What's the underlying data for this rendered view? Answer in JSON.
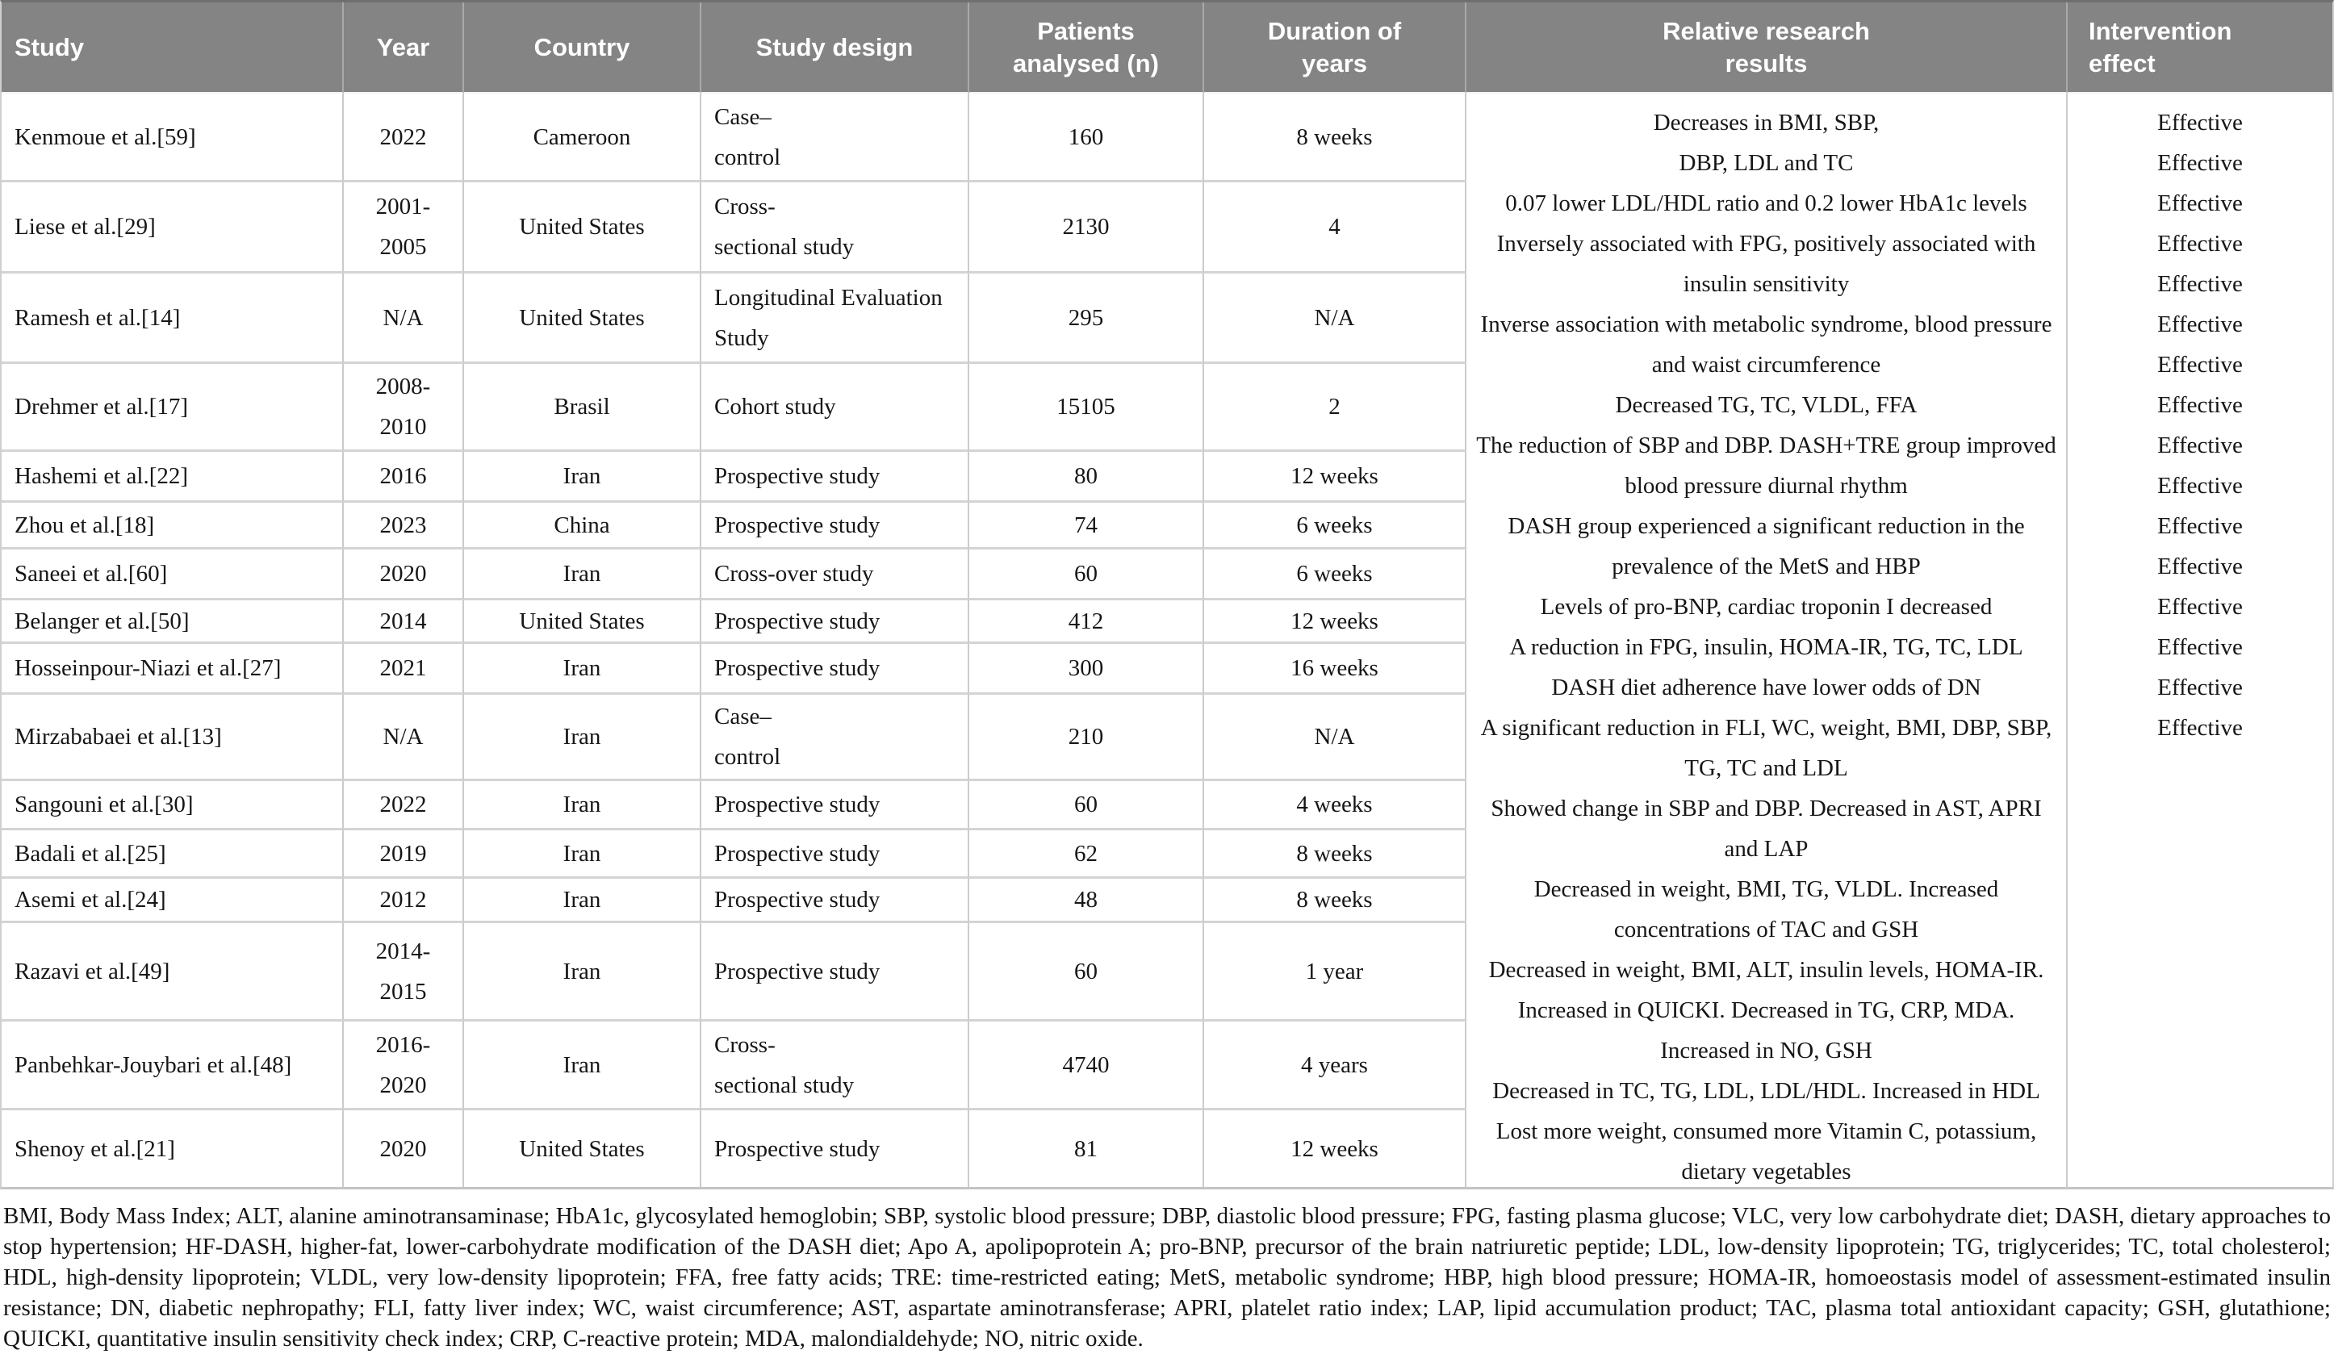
{
  "table": {
    "header": [
      "Study",
      "Year",
      "Country",
      "Study design",
      "Patients\nanalysed (n)",
      "Duration of\nyears",
      "Relative research\nresults",
      "Intervention\neffect"
    ],
    "rows": [
      {
        "study": "Kenmoue et al.[59]",
        "year": "2022",
        "country": "Cameroon",
        "design": "Case–\ncontrol",
        "patients": "160",
        "duration": "8 weeks"
      },
      {
        "study": "Liese et al.[29]",
        "year": "2001-\n2005",
        "country": "United States",
        "design": "Cross-\nsectional study",
        "patients": "2130",
        "duration": "4"
      },
      {
        "study": "Ramesh et al.[14]",
        "year": "N/A",
        "country": "United States",
        "design": "Longitudinal Evaluation\nStudy",
        "patients": "295",
        "duration": "N/A"
      },
      {
        "study": "Drehmer et al.[17]",
        "year": "2008-\n2010",
        "country": "Brasil",
        "design": "Cohort study",
        "patients": "15105",
        "duration": "2"
      },
      {
        "study": "Hashemi et al.[22]",
        "year": "2016",
        "country": "Iran",
        "design": "Prospective study",
        "patients": "80",
        "duration": "12 weeks"
      },
      {
        "study": "Zhou et al.[18]",
        "year": "2023",
        "country": "China",
        "design": "Prospective study",
        "patients": "74",
        "duration": "6 weeks"
      },
      {
        "study": "Saneei et al.[60]",
        "year": "2020",
        "country": "Iran",
        "design": "Cross-over study",
        "patients": "60",
        "duration": "6 weeks"
      },
      {
        "study": "Belanger et al.[50]",
        "year": "2014",
        "country": "United States",
        "design": "Prospective study",
        "patients": "412",
        "duration": "12 weeks"
      },
      {
        "study": "Hosseinpour-Niazi et al.[27]",
        "year": "2021",
        "country": "Iran",
        "design": "Prospective study",
        "patients": "300",
        "duration": "16 weeks"
      },
      {
        "study": "Mirzababaei et al.[13]",
        "year": "N/A",
        "country": "Iran",
        "design": "Case–\ncontrol",
        "patients": "210",
        "duration": "N/A"
      },
      {
        "study": "Sangouni et al.[30]",
        "year": "2022",
        "country": "Iran",
        "design": "Prospective study",
        "patients": "60",
        "duration": "4 weeks"
      },
      {
        "study": "Badali et al.[25]",
        "year": "2019",
        "country": "Iran",
        "design": "Prospective study",
        "patients": "62",
        "duration": "8 weeks"
      },
      {
        "study": "Asemi et al.[24]",
        "year": "2012",
        "country": "Iran",
        "design": "Prospective study",
        "patients": "48",
        "duration": "8 weeks"
      },
      {
        "study": "Razavi et al.[49]",
        "year": "2014-\n2015",
        "country": "Iran",
        "design": "Prospective study",
        "patients": "60",
        "duration": "1 year"
      },
      {
        "study": "Panbehkar-Jouybari et al.[48]",
        "year": "2016-\n2020",
        "country": "Iran",
        "design": "Cross-\nsectional study",
        "patients": "4740",
        "duration": "4 years"
      },
      {
        "study": "Shenoy et al.[21]",
        "year": "2020",
        "country": "United States",
        "design": "Prospective study",
        "patients": "81",
        "duration": "12 weeks"
      }
    ],
    "results_lines": [
      "Decreases in BMI, SBP,",
      "DBP, LDL and TC",
      "0.07 lower LDL/HDL ratio and 0.2 lower HbA1c levels",
      "Inversely associated with FPG, positively associated with",
      "insulin sensitivity",
      "Inverse association with metabolic syndrome, blood pressure",
      "and waist circumference",
      "Decreased TG, TC, VLDL, FFA",
      "The reduction of SBP and DBP. DASH+TRE group improved",
      "blood pressure diurnal rhythm",
      "DASH group experienced a significant reduction in the",
      "prevalence of the MetS and HBP",
      "Levels of pro-BNP, cardiac troponin I decreased",
      "A reduction in FPG, insulin, HOMA-IR, TG, TC, LDL",
      "DASH diet adherence have lower odds of DN",
      "A significant reduction in FLI, WC, weight, BMI, DBP, SBP,",
      "TG, TC and LDL",
      "Showed change in SBP and DBP. Decreased in AST, APRI",
      "and LAP",
      "Decreased in weight, BMI, TG, VLDL. Increased",
      "concentrations of TAC and GSH",
      "Decreased in weight, BMI, ALT, insulin levels, HOMA-IR.",
      "Increased in QUICKI. Decreased in TG, CRP, MDA.",
      "Increased in NO, GSH",
      "Decreased in TC, TG, LDL, LDL/HDL. Increased in HDL",
      "Lost more weight, consumed more Vitamin C, potassium,",
      "dietary vegetables"
    ],
    "effect_lines": [
      "Effective",
      "Effective",
      "Effective",
      "Effective",
      "Effective",
      "Effective",
      "Effective",
      "Effective",
      "Effective",
      "Effective",
      "Effective",
      "Effective",
      "Effective",
      "Effective",
      "Effective",
      "Effective"
    ]
  },
  "footnote": "BMI, Body Mass Index; ALT, alanine aminotransaminase; HbA1c, glycosylated hemoglobin; SBP, systolic blood pressure; DBP, diastolic blood pressure; FPG, fasting plasma glucose; VLC, very low carbohydrate diet; DASH, dietary approaches to stop hypertension; HF-DASH, higher-fat, lower-carbohydrate modification of the DASH diet; Apo A, apolipoprotein A; pro-BNP, precursor of the brain natriuretic peptide; LDL, low-density lipoprotein; TG, triglycerides; TC, total cholesterol; HDL, high-density lipoprotein; VLDL, very low-density lipoprotein; FFA, free fatty acids; TRE: time-restricted eating; MetS, metabolic syndrome; HBP, high blood pressure; HOMA-IR, homoeostasis model of assessment-estimated insulin resistance; DN, diabetic nephropathy; FLI, fatty liver index; WC, waist circumference; AST, aspartate aminotransferase; APRI, platelet ratio index; LAP, lipid accumulation product; TAC, plasma total antioxidant capacity; GSH, glutathione; QUICKI, quantitative insulin sensitivity check index; CRP, C-reactive protein; MDA, malondialdehyde; NO, nitric oxide."
}
